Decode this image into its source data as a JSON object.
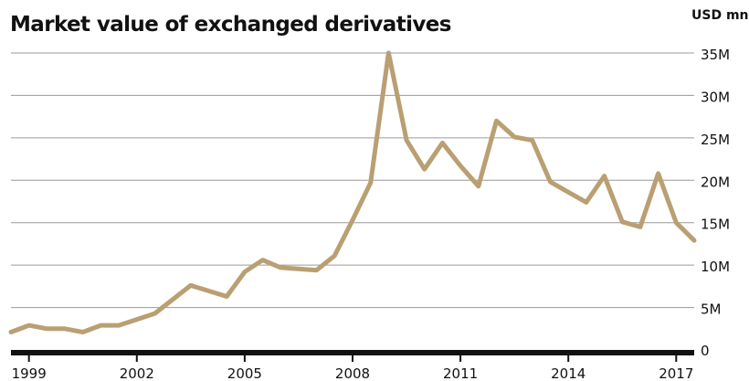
{
  "chart_data": {
    "type": "line",
    "title": "Market value of exchanged derivatives",
    "unit_label": "USD mn",
    "xlabel": "",
    "ylabel": "",
    "ylim": [
      0,
      35000000
    ],
    "xlim": [
      1998.5,
      2017.5
    ],
    "grid": true,
    "y_ticks": [
      {
        "value": 0,
        "label": "0"
      },
      {
        "value": 5000000,
        "label": "5M"
      },
      {
        "value": 10000000,
        "label": "10M"
      },
      {
        "value": 15000000,
        "label": "15M"
      },
      {
        "value": 20000000,
        "label": "20M"
      },
      {
        "value": 25000000,
        "label": "25M"
      },
      {
        "value": 30000000,
        "label": "30M"
      },
      {
        "value": 35000000,
        "label": "35M"
      }
    ],
    "x_ticks": [
      {
        "value": 1999,
        "label": "1999"
      },
      {
        "value": 2002,
        "label": "2002"
      },
      {
        "value": 2005,
        "label": "2005"
      },
      {
        "value": 2008,
        "label": "2008"
      },
      {
        "value": 2011,
        "label": "2011"
      },
      {
        "value": 2014,
        "label": "2014"
      },
      {
        "value": 2017,
        "label": "2017"
      }
    ],
    "color": "#b99f72",
    "series": [
      {
        "x": [
          1998.5,
          1999.0,
          1999.5,
          2000.0,
          2000.5,
          2001.0,
          2001.5,
          2002.0,
          2002.5,
          2003.5,
          2004.5,
          2005.0,
          2005.5,
          2006.0,
          2007.0,
          2007.5,
          2008.0,
          2008.5,
          2009.0,
          2009.5,
          2010.0,
          2010.5,
          2011.0,
          2011.5,
          2012.0,
          2012.5,
          2013.0,
          2013.5,
          2014.0,
          2014.5,
          2015.0,
          2015.5,
          2016.0,
          2016.5,
          2017.0,
          2017.5
        ],
        "y": [
          2100000,
          2900000,
          2500000,
          2500000,
          2100000,
          2900000,
          2900000,
          3600000,
          4300000,
          7600000,
          6300000,
          9200000,
          10600000,
          9700000,
          9400000,
          11100000,
          15300000,
          19700000,
          35000000,
          24700000,
          21300000,
          24400000,
          21700000,
          19300000,
          27000000,
          25100000,
          24700000,
          19800000,
          18600000,
          17400000,
          20500000,
          15100000,
          14500000,
          20800000,
          15000000,
          12900000
        ]
      }
    ]
  }
}
